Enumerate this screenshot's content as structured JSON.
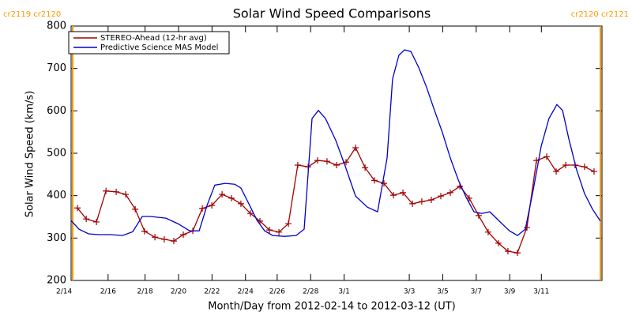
{
  "chart_data": {
    "type": "line",
    "title": "Solar Wind Speed Comparisons",
    "xlabel": "Month/Day from 2012-02-14 to 2012-03-12 (UT)",
    "ylabel": "Solar Wind Speed (km/s)",
    "xlim": [
      0.4,
      30.54
    ],
    "ylim": [
      200,
      800
    ],
    "yticks": [
      200,
      300,
      400,
      500,
      600,
      700,
      800
    ],
    "xticks": [
      {
        "value": 0,
        "label": "2/14"
      },
      {
        "value": 2.5,
        "label": "2/16"
      },
      {
        "value": 4.6,
        "label": "2/18"
      },
      {
        "value": 6.5,
        "label": "2/20"
      },
      {
        "value": 8.4,
        "label": "2/22"
      },
      {
        "value": 10.3,
        "label": "2/24"
      },
      {
        "value": 12.1,
        "label": "2/26"
      },
      {
        "value": 14.0,
        "label": "2/28"
      },
      {
        "value": 15.9,
        "label": "3/1"
      },
      {
        "value": 19.6,
        "label": "3/3"
      },
      {
        "value": 21.5,
        "label": "3/5"
      },
      {
        "value": 23.4,
        "label": "3/7"
      },
      {
        "value": 25.3,
        "label": "3/9"
      },
      {
        "value": 27.1,
        "label": "3/11"
      }
    ],
    "legend": "upper left",
    "markers": [
      {
        "label": "cr2119 cr2120",
        "x": 0.49,
        "color": "#ff9900"
      },
      {
        "label": "cr2120 cr2121",
        "x": 30.45,
        "color": "#ff9900"
      }
    ],
    "series": [
      {
        "name": "STEREO-Ahead (12-hr avg)",
        "color": "#a00000",
        "marker": "+",
        "x": [
          0.76,
          1.26,
          1.84,
          2.38,
          2.96,
          3.5,
          4.04,
          4.57,
          5.16,
          5.69,
          6.23,
          6.77,
          7.31,
          7.85,
          8.39,
          8.97,
          9.51,
          10.04,
          10.58,
          11.12,
          11.66,
          12.2,
          12.74,
          13.27,
          13.86,
          14.39,
          14.93,
          15.47,
          16.01,
          16.55,
          17.09,
          17.62,
          18.16,
          18.7,
          19.24,
          19.78,
          20.31,
          20.85,
          21.39,
          21.93,
          22.47,
          23.0,
          23.54,
          24.08,
          24.66,
          25.2,
          25.74,
          26.28,
          26.82,
          27.4,
          27.94,
          28.48,
          29.01,
          29.55,
          30.09
        ],
        "values": [
          371,
          345,
          338,
          411,
          409,
          403,
          368,
          316,
          302,
          297,
          293,
          308,
          317,
          370,
          377,
          403,
          394,
          381,
          358,
          340,
          319,
          314,
          334,
          472,
          468,
          483,
          481,
          472,
          479,
          513,
          466,
          436,
          429,
          401,
          407,
          381,
          386,
          390,
          399,
          407,
          422,
          394,
          353,
          314,
          288,
          269,
          265,
          325,
          483,
          492,
          457,
          472,
          472,
          468,
          457
        ]
      },
      {
        "name": "Predictive Science MAS Model",
        "color": "#0000cc",
        "x": [
          0.4,
          0.85,
          1.39,
          1.97,
          2.65,
          3.32,
          3.9,
          4.44,
          4.89,
          5.78,
          6.46,
          7.13,
          7.67,
          8.12,
          8.56,
          9.15,
          9.69,
          10.04,
          10.49,
          10.94,
          11.39,
          11.84,
          12.51,
          13.18,
          13.63,
          14.08,
          14.44,
          14.84,
          15.43,
          15.96,
          16.55,
          17.22,
          17.8,
          18.34,
          18.65,
          19.01,
          19.33,
          19.69,
          20.13,
          20.58,
          21.03,
          21.48,
          21.93,
          22.38,
          22.83,
          23.27,
          23.72,
          24.17,
          24.71,
          25.29,
          25.74,
          26.19,
          26.64,
          27.09,
          27.53,
          27.98,
          28.3,
          28.65,
          29.1,
          29.55,
          30.0,
          30.45
        ],
        "values": [
          341,
          321,
          310,
          308,
          308,
          306,
          315,
          351,
          351,
          347,
          334,
          317,
          317,
          377,
          425,
          429,
          427,
          418,
          381,
          343,
          317,
          306,
          304,
          306,
          321,
          582,
          601,
          582,
          530,
          470,
          399,
          373,
          362,
          489,
          675,
          731,
          744,
          740,
          703,
          656,
          601,
          549,
          489,
          437,
          396,
          362,
          358,
          362,
          340,
          317,
          306,
          321,
          414,
          517,
          582,
          615,
          601,
          535,
          461,
          405,
          368,
          340
        ]
      }
    ]
  }
}
